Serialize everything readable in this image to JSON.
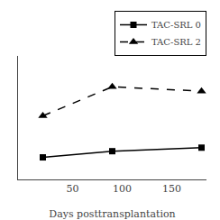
{
  "chart_data": {
    "type": "line",
    "xlabel": "Days posttransplantation",
    "x": [
      20,
      90,
      180
    ],
    "series": [
      {
        "name": "TAC-SRL 0",
        "values": [
          2.5,
          3.2,
          3.6
        ],
        "color": "#000000",
        "marker": "square",
        "line_style": "solid"
      },
      {
        "name": "TAC-SRL 2",
        "values": [
          7.2,
          10.5,
          10.0
        ],
        "color": "#000000",
        "marker": "triangle-up",
        "line_style": "dashed"
      }
    ],
    "xlim": [
      -5,
      185
    ],
    "xticks": [
      50,
      100,
      150
    ],
    "ylim": [
      0,
      14
    ],
    "tick_labels": "x",
    "grid": false,
    "legend": "upper right"
  }
}
